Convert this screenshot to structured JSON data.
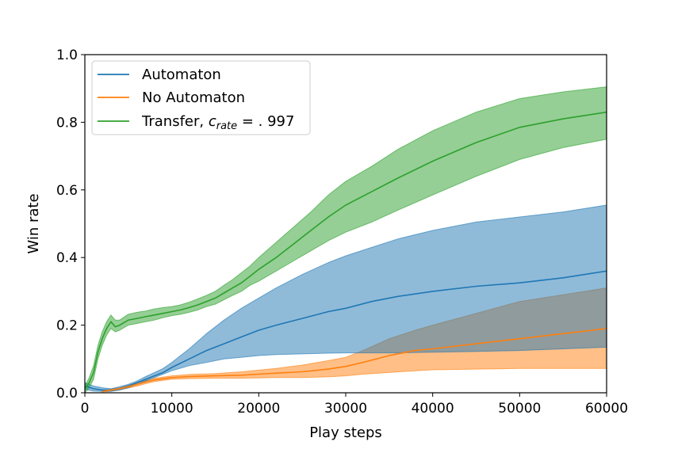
{
  "chart_data": {
    "type": "line",
    "xlabel": "Play steps",
    "ylabel": "Win rate",
    "xlim": [
      0,
      60000
    ],
    "ylim": [
      0.0,
      1.0
    ],
    "grid": false,
    "legend_placement": "top-left",
    "x_ticks": [
      "0",
      "10000",
      "20000",
      "30000",
      "40000",
      "50000",
      "60000"
    ],
    "y_ticks": [
      "0.0",
      "0.2",
      "0.4",
      "0.6",
      "0.8",
      "1.0"
    ],
    "series": [
      {
        "name": "Automaton",
        "color": "#1f77b4",
        "x": [
          0,
          1000,
          2000,
          3000,
          4000,
          5000,
          6000,
          7000,
          8000,
          9000,
          10000,
          12000,
          14000,
          16000,
          18000,
          20000,
          22000,
          25000,
          28000,
          30000,
          33000,
          36000,
          40000,
          45000,
          50000,
          55000,
          60000
        ],
        "y": [
          0.02,
          0.012,
          0.008,
          0.008,
          0.012,
          0.02,
          0.03,
          0.04,
          0.05,
          0.06,
          0.075,
          0.1,
          0.125,
          0.145,
          0.165,
          0.185,
          0.2,
          0.22,
          0.24,
          0.25,
          0.27,
          0.285,
          0.3,
          0.315,
          0.325,
          0.34,
          0.36
        ],
        "lower": [
          0.01,
          0.005,
          0.004,
          0.004,
          0.008,
          0.015,
          0.025,
          0.035,
          0.045,
          0.055,
          0.065,
          0.08,
          0.09,
          0.1,
          0.105,
          0.11,
          0.113,
          0.115,
          0.117,
          0.118,
          0.118,
          0.118,
          0.12,
          0.122,
          0.125,
          0.13,
          0.135
        ],
        "upper": [
          0.03,
          0.02,
          0.015,
          0.012,
          0.018,
          0.025,
          0.035,
          0.048,
          0.06,
          0.072,
          0.09,
          0.13,
          0.175,
          0.215,
          0.25,
          0.28,
          0.31,
          0.35,
          0.385,
          0.405,
          0.43,
          0.455,
          0.48,
          0.505,
          0.52,
          0.535,
          0.555
        ]
      },
      {
        "name": "No Automaton",
        "color": "#ff7f0e",
        "x": [
          2000,
          3000,
          4000,
          5000,
          6000,
          7000,
          8000,
          10000,
          12000,
          15000,
          18000,
          20000,
          22000,
          25000,
          28000,
          30000,
          32000,
          35000,
          38000,
          40000,
          45000,
          50000,
          55000,
          60000
        ],
        "y": [
          0.004,
          0.008,
          0.012,
          0.018,
          0.025,
          0.032,
          0.038,
          0.045,
          0.048,
          0.05,
          0.052,
          0.055,
          0.058,
          0.062,
          0.07,
          0.078,
          0.09,
          0.11,
          0.125,
          0.13,
          0.145,
          0.16,
          0.175,
          0.19
        ],
        "lower": [
          0.002,
          0.005,
          0.009,
          0.014,
          0.02,
          0.027,
          0.033,
          0.04,
          0.042,
          0.043,
          0.043,
          0.044,
          0.045,
          0.045,
          0.047,
          0.05,
          0.055,
          0.06,
          0.065,
          0.068,
          0.07,
          0.072,
          0.072,
          0.072
        ],
        "upper": [
          0.006,
          0.011,
          0.015,
          0.022,
          0.03,
          0.037,
          0.043,
          0.05,
          0.054,
          0.057,
          0.062,
          0.067,
          0.072,
          0.082,
          0.095,
          0.105,
          0.125,
          0.16,
          0.185,
          0.2,
          0.235,
          0.27,
          0.29,
          0.31
        ]
      },
      {
        "name": "Transfer, c_rate = .997",
        "label_main": "Transfer, ",
        "label_math": "c",
        "label_sub": "rate",
        "label_rest": " = . 997",
        "color": "#2ca02c",
        "x": [
          0,
          500,
          1000,
          1500,
          2000,
          2500,
          3000,
          3500,
          4000,
          5000,
          6000,
          7000,
          8000,
          9000,
          10000,
          11000,
          12000,
          13000,
          14000,
          15000,
          16000,
          17000,
          18000,
          19000,
          20000,
          22000,
          24000,
          26000,
          28000,
          30000,
          33000,
          36000,
          40000,
          45000,
          50000,
          55000,
          60000
        ],
        "y": [
          0.01,
          0.03,
          0.06,
          0.12,
          0.16,
          0.19,
          0.21,
          0.195,
          0.2,
          0.215,
          0.22,
          0.225,
          0.23,
          0.235,
          0.24,
          0.245,
          0.252,
          0.26,
          0.27,
          0.28,
          0.295,
          0.31,
          0.325,
          0.345,
          0.365,
          0.4,
          0.44,
          0.48,
          0.52,
          0.555,
          0.595,
          0.635,
          0.685,
          0.74,
          0.785,
          0.81,
          0.83
        ],
        "lower": [
          0.0,
          0.015,
          0.04,
          0.1,
          0.14,
          0.17,
          0.19,
          0.18,
          0.185,
          0.2,
          0.205,
          0.21,
          0.215,
          0.222,
          0.228,
          0.232,
          0.238,
          0.245,
          0.255,
          0.262,
          0.275,
          0.288,
          0.3,
          0.318,
          0.33,
          0.36,
          0.39,
          0.42,
          0.45,
          0.475,
          0.505,
          0.54,
          0.585,
          0.64,
          0.69,
          0.725,
          0.75
        ],
        "upper": [
          0.02,
          0.045,
          0.08,
          0.14,
          0.18,
          0.21,
          0.23,
          0.215,
          0.215,
          0.232,
          0.238,
          0.242,
          0.248,
          0.252,
          0.255,
          0.26,
          0.268,
          0.278,
          0.288,
          0.3,
          0.318,
          0.335,
          0.355,
          0.375,
          0.4,
          0.445,
          0.49,
          0.535,
          0.585,
          0.625,
          0.67,
          0.72,
          0.775,
          0.83,
          0.87,
          0.89,
          0.905
        ]
      }
    ]
  }
}
